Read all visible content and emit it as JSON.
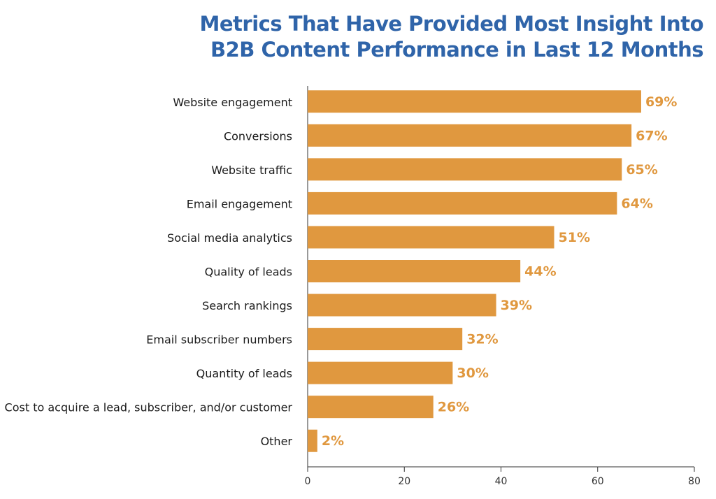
{
  "chart_data": {
    "type": "barh",
    "title": [
      "Metrics That Have Provided Most Insight Into",
      "B2B Content Performance in Last 12 Months"
    ],
    "categories": [
      "Website engagement",
      "Conversions",
      "Website traffic",
      "Email engagement",
      "Social media analytics",
      "Quality of leads",
      "Search rankings",
      "Email subscriber numbers",
      "Quantity of leads",
      "Cost to acquire a lead, subscriber, and/or customer",
      "Other"
    ],
    "values": [
      69,
      67,
      65,
      64,
      51,
      44,
      39,
      32,
      30,
      26,
      2
    ],
    "value_labels": [
      "69%",
      "67%",
      "65%",
      "64%",
      "51%",
      "44%",
      "39%",
      "32%",
      "30%",
      "26%",
      "2%"
    ],
    "color": "#e0983f",
    "xlim": [
      0,
      80
    ],
    "xticks": [
      0,
      20,
      40,
      60,
      80
    ],
    "grid": false
  }
}
